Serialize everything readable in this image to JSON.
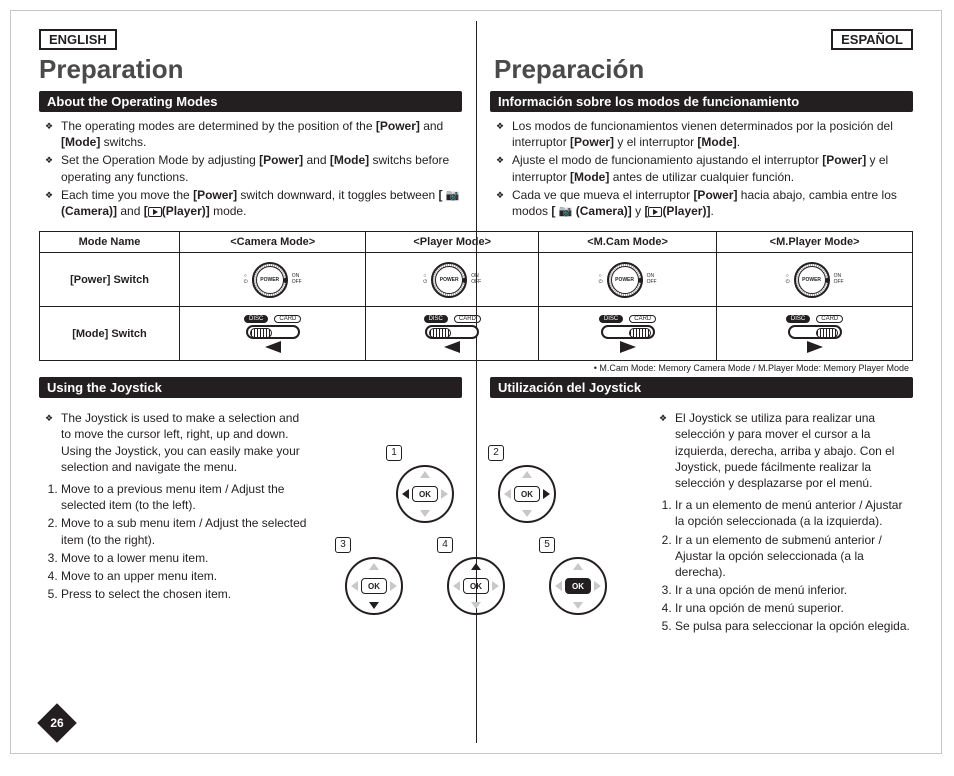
{
  "lang": {
    "en": "ENGLISH",
    "es": "ESPAÑOL"
  },
  "title": {
    "en": "Preparation",
    "es": "Preparación"
  },
  "sec1": {
    "bar_en": "About the Operating Modes",
    "bar_es": "Información sobre los modos de funcionamiento",
    "en": [
      "The operating modes are determined by the position of the [Power] and [Mode] switchs.",
      "Set the Operation Mode by adjusting [Power] and [Mode] switchs before operating any functions.",
      "Each time you move the [Power] switch downward, it toggles between [ 📷 (Camera)] and [ ▶ (Player)] mode."
    ],
    "es": [
      "Los modos de funcionamientos vienen determinados por la posición del interruptor [Power] y el interruptor [Mode].",
      "Ajuste el modo de funcionamiento ajustando el interruptor [Power] y el interruptor [Mode] antes de utilizar cualquier función.",
      "Cada ve que mueva el interruptor [Power] hacia abajo, cambia entre los modos [ 📷 (Camera)] y [ ▶ (Player)]."
    ]
  },
  "table": {
    "h0": "Mode Name",
    "h1": "<Camera Mode>",
    "h2": "<Player Mode>",
    "h3": "<M.Cam Mode>",
    "h4": "<M.Player Mode>",
    "r1": "[Power] Switch",
    "r2": "[Mode] Switch",
    "dial_text": "POWER",
    "dial_labels_top": "○\n⏻",
    "dial_labels_side": "ON\nOFF",
    "chip_disc": "DISC",
    "chip_card": "CARD",
    "cols": [
      {
        "knob": "left",
        "arrow": "left"
      },
      {
        "knob": "left",
        "arrow": "left"
      },
      {
        "knob": "right",
        "arrow": "right"
      },
      {
        "knob": "right",
        "arrow": "right"
      }
    ],
    "foot": "• M.Cam Mode: Memory Camera Mode / M.Player Mode: Memory Player Mode"
  },
  "sec2": {
    "bar_en": "Using the Joystick",
    "bar_es": "Utilización del Joystick",
    "intro_en": "The Joystick is used to make a selection and to move the cursor left, right, up and down. Using the Joystick, you can easily make your selection and navigate the menu.",
    "intro_es": "El Joystick se utiliza para realizar una selección y para mover el cursor a la izquierda, derecha, arriba y abajo. Con el Joystick, puede fácilmente realizar la selección y desplazarse por el menú.",
    "list_en": [
      "Move to a previous menu item / Adjust the selected item (to the left).",
      "Move to a sub menu item / Adjust the selected item (to the right).",
      "Move to a lower menu item.",
      "Move to an upper menu item.",
      "Press to select the chosen item."
    ],
    "list_es": [
      "Ir a un elemento de menú anterior / Ajustar la opción seleccionada (a la izquierda).",
      "Ir a un elemento de submenú anterior / Ajustar la opción seleccionada (a la derecha).",
      "Ir a una opción de menú inferior.",
      "Ir una opción de menú superior.",
      "Se pulsa para seleccionar la opción elegida."
    ]
  },
  "joy": {
    "ok": "OK",
    "pads": [
      {
        "n": "1",
        "active": "lft"
      },
      {
        "n": "2",
        "active": "rgt"
      },
      {
        "n": "3",
        "active": "down"
      },
      {
        "n": "4",
        "active": "up"
      },
      {
        "n": "5",
        "active": "ok"
      }
    ]
  },
  "page_number": "26"
}
